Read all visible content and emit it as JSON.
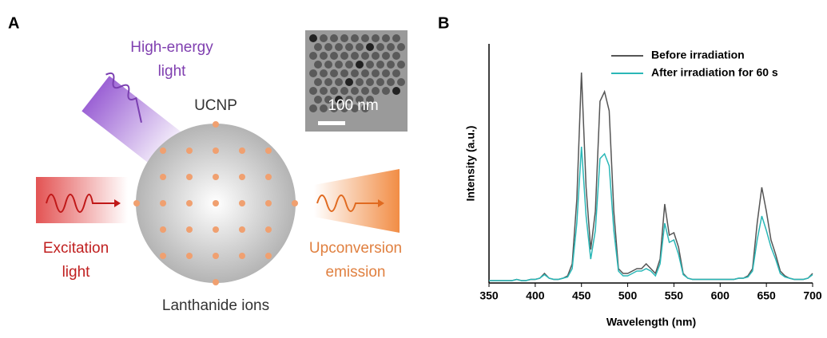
{
  "panel_a": {
    "label": "A",
    "high_energy_light": [
      "High-energy",
      "light"
    ],
    "particle": "UCNP",
    "scale_bar": "100 nm",
    "excitation_light": [
      "Excitation",
      "light"
    ],
    "emission": [
      "Upconversion",
      "emission"
    ],
    "ions": "Lanthanide ions"
  },
  "chart_data": {
    "type": "line",
    "panel_label": "B",
    "x_label": "Wavelength (nm)",
    "y_label": "Intensity (a.u.)",
    "x": [
      350,
      355,
      360,
      365,
      370,
      375,
      380,
      385,
      390,
      395,
      400,
      405,
      410,
      415,
      420,
      425,
      430,
      435,
      440,
      445,
      450,
      455,
      460,
      465,
      470,
      475,
      480,
      485,
      490,
      495,
      500,
      505,
      510,
      515,
      520,
      525,
      530,
      535,
      540,
      545,
      550,
      555,
      560,
      565,
      570,
      575,
      580,
      585,
      590,
      595,
      600,
      605,
      610,
      615,
      620,
      625,
      630,
      635,
      640,
      645,
      650,
      655,
      660,
      665,
      670,
      675,
      680,
      685,
      690,
      695,
      700
    ],
    "xlim": [
      350,
      700
    ],
    "xticks": [
      350,
      400,
      450,
      500,
      550,
      600,
      650,
      700
    ],
    "ylim": [
      0,
      100
    ],
    "legend": "upper right",
    "series": [
      {
        "name": "Before irradiation",
        "color": "#555555",
        "values": [
          1,
          1,
          1,
          1,
          1,
          1,
          1.5,
          1,
          1,
          1.5,
          1.5,
          2,
          4,
          2,
          1.5,
          1.5,
          2,
          3,
          8,
          35,
          88,
          40,
          14,
          30,
          76,
          80,
          72,
          30,
          6,
          4,
          4,
          5,
          6,
          6,
          8,
          6,
          4,
          10,
          33,
          20,
          21,
          15,
          4,
          2,
          1.5,
          1.5,
          1.5,
          1.5,
          1.5,
          1.5,
          1.5,
          1.5,
          1.5,
          1.5,
          2,
          2,
          3,
          6,
          25,
          40,
          30,
          18,
          12,
          5,
          3,
          2,
          1.5,
          1.5,
          1.5,
          2,
          4
        ]
      },
      {
        "name": "After irradiation for 60 s",
        "color": "#2ab7b7",
        "values": [
          1,
          1,
          1,
          1,
          1,
          1,
          1.5,
          1,
          1,
          1.5,
          1.5,
          2,
          3.5,
          2,
          1.5,
          1.5,
          2,
          2.5,
          6,
          25,
          57,
          28,
          10,
          22,
          52,
          54,
          49,
          22,
          5,
          3,
          3,
          4,
          5,
          5,
          6,
          5,
          3,
          8,
          25,
          17,
          18,
          12,
          3.5,
          2,
          1.5,
          1.5,
          1.5,
          1.5,
          1.5,
          1.5,
          1.5,
          1.5,
          1.5,
          1.5,
          2,
          2,
          2.5,
          5,
          18,
          28,
          22,
          15,
          10,
          4,
          2.5,
          2,
          1.5,
          1.5,
          1.5,
          2,
          3.5
        ]
      }
    ]
  }
}
